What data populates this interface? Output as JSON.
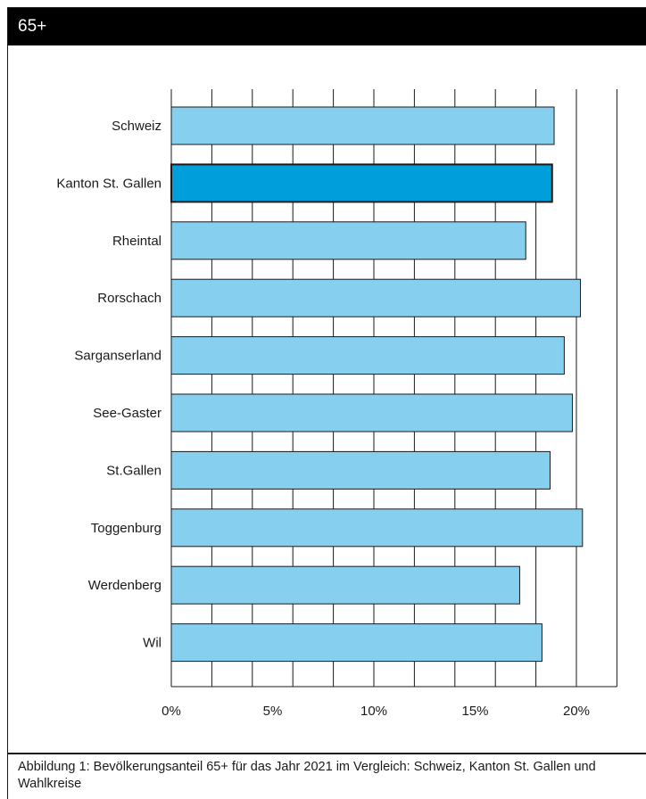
{
  "header": {
    "title": "65+"
  },
  "caption": "Abbildung 1: Bevölkerungsanteil 65+ für das Jahr 2021 im Vergleich: Schweiz, Kanton St. Gallen und Wahlkreise",
  "colors": {
    "bar": "#87cfee",
    "highlight": "#009fdb",
    "header_bg": "#000000",
    "grid": "#1a1a1a"
  },
  "chart_data": {
    "type": "bar",
    "orientation": "horizontal",
    "categories": [
      "Schweiz",
      "Kanton St. Gallen",
      "Rheintal",
      "Rorschach",
      "Sarganserland",
      "See-Gaster",
      "St.Gallen",
      "Toggenburg",
      "Werdenberg",
      "Wil"
    ],
    "values": [
      18.9,
      18.8,
      17.5,
      20.2,
      19.4,
      19.8,
      18.7,
      20.3,
      17.2,
      18.3
    ],
    "highlight": "Kanton St. Gallen",
    "unit": "%",
    "xlim": [
      0,
      22
    ],
    "xticks": [
      0,
      5,
      10,
      15,
      20
    ],
    "xtick_labels": [
      "0%",
      "5%",
      "10%",
      "15%",
      "20%"
    ],
    "grid": true
  }
}
